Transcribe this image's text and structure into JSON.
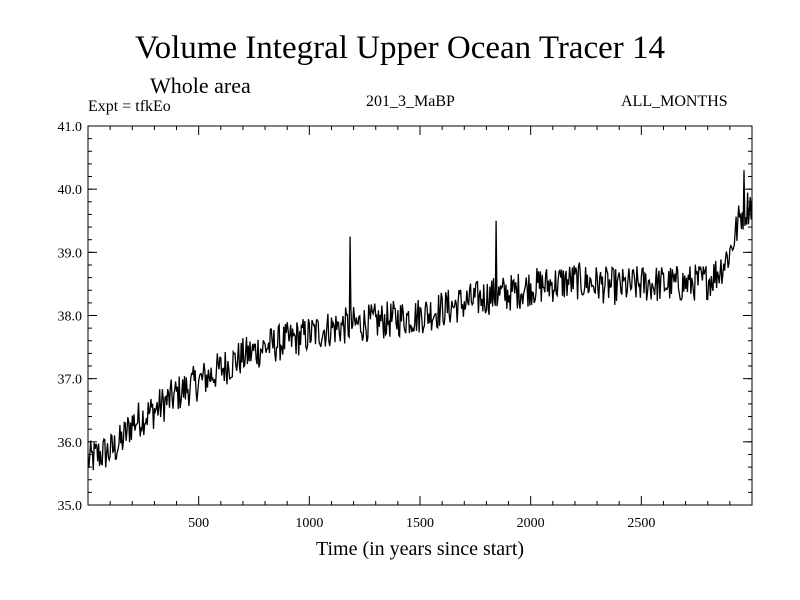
{
  "chart_data": {
    "type": "line",
    "title": "Volume Integral Upper Ocean Tracer 14",
    "subtitle": "Whole area",
    "experiment_label": "Expt = tfkEo",
    "run_label": "201_3_MaBP",
    "months_label": "ALL_MONTHS",
    "xlabel": "Time (in years since start)",
    "ylabel": "",
    "xlim": [
      0,
      3000
    ],
    "ylim": [
      35.0,
      41.0
    ],
    "x_ticks": [
      500,
      1000,
      1500,
      2000,
      2500
    ],
    "x_tick_labels": [
      "500",
      "1000",
      "1500",
      "2000",
      "2500"
    ],
    "y_ticks": [
      35.0,
      36.0,
      37.0,
      38.0,
      39.0,
      40.0,
      41.0
    ],
    "y_tick_labels": [
      "35.0",
      "36.0",
      "37.0",
      "38.0",
      "39.0",
      "40.0",
      "41.0"
    ],
    "grid": false,
    "series": [
      {
        "x": [
          0,
          50,
          100,
          150,
          200,
          300,
          400,
          500,
          600,
          700,
          800,
          900,
          1000,
          1100,
          1200,
          1300,
          1400,
          1500,
          1600,
          1700,
          1800,
          1900,
          2000,
          2100,
          2200,
          2300,
          2400,
          2500,
          2600,
          2700,
          2800,
          2850,
          2900,
          2950,
          3000
        ],
        "values": [
          35.7,
          35.8,
          35.85,
          36.0,
          36.3,
          36.5,
          36.75,
          36.95,
          37.15,
          37.35,
          37.5,
          37.6,
          37.7,
          37.8,
          37.85,
          37.9,
          37.95,
          38.0,
          38.1,
          38.2,
          38.3,
          38.35,
          38.45,
          38.5,
          38.55,
          38.5,
          38.45,
          38.5,
          38.5,
          38.5,
          38.55,
          38.7,
          39.0,
          39.6,
          39.8
        ],
        "noise_amplitude": 0.3,
        "spikes": [
          [
            1185,
            39.25
          ],
          [
            1845,
            39.5
          ],
          [
            2965,
            40.3
          ]
        ]
      }
    ]
  }
}
